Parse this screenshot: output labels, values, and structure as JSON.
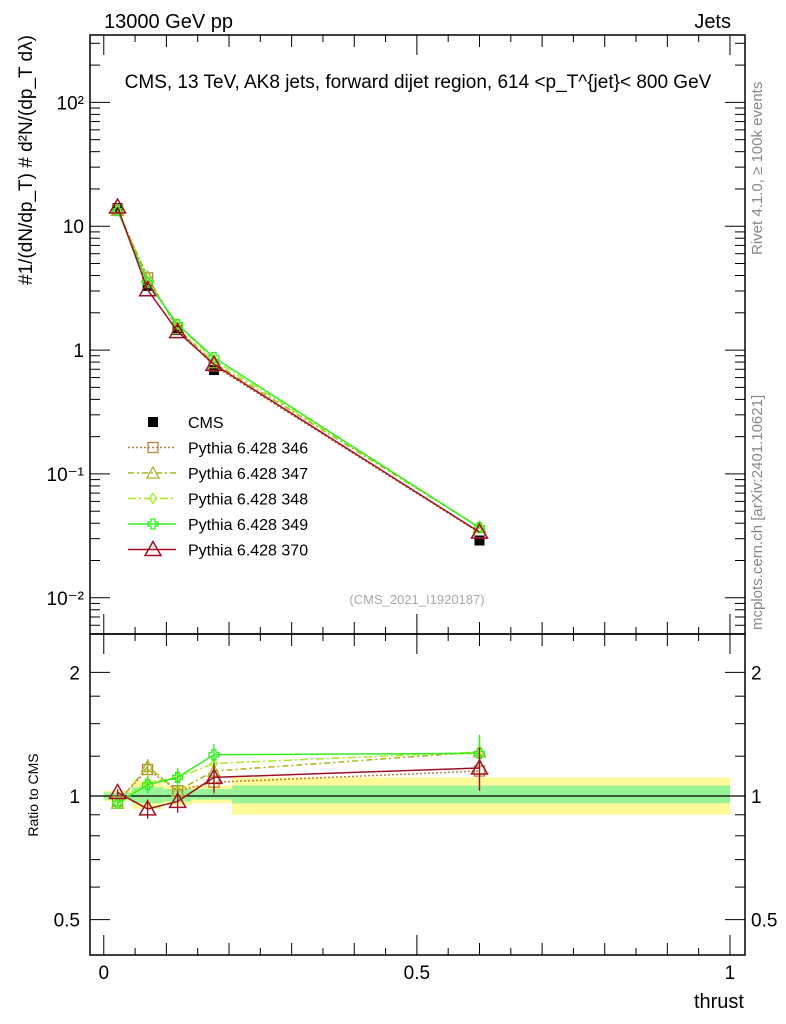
{
  "header": {
    "left": "13000 GeV pp",
    "right": "Jets"
  },
  "side_labels": {
    "rivet": "Rivet 4.1.0, ≥ 100k events",
    "mcplots": "mcplots.cern.ch [arXiv:2401.10621]"
  },
  "watermark": "(CMS_2021_I1920187)",
  "chart_data": [
    {
      "type": "line",
      "title": "CMS, 13 TeV, AK8 jets, forward dijet region, 614 <p_T^{jet}< 800 GeV",
      "ylabel": "#1/(dN/dp_T) # d²N/(dp_T dλ)",
      "xlabel": "",
      "yscale": "log",
      "ylim": [
        0.0051,
        350
      ],
      "xlim": [
        -0.022,
        1.024
      ],
      "yticks": [
        {
          "v": 0.01,
          "label": "10⁻²"
        },
        {
          "v": 0.1,
          "label": "10⁻¹"
        },
        {
          "v": 1,
          "label": "1"
        },
        {
          "v": 10,
          "label": "10"
        },
        {
          "v": 100,
          "label": "10²"
        }
      ],
      "legend_position": "lower-left",
      "x": [
        0.022,
        0.07,
        0.118,
        0.176,
        0.6
      ],
      "bin_edges": [
        0,
        0.045,
        0.095,
        0.14,
        0.205,
        1
      ],
      "series": [
        {
          "name": "CMS",
          "color": "#000000",
          "marker": "square",
          "values": [
            14,
            3.3,
            1.45,
            0.69,
            0.029
          ]
        },
        {
          "name": "Pythia 6.428 346",
          "color": "#b8843c",
          "marker": "open-square",
          "dash": "2,2",
          "values": [
            13.6,
            3.83,
            1.49,
            0.745,
            0.0334
          ]
        },
        {
          "name": "Pythia 6.428 347",
          "color": "#a8b41e",
          "marker": "open-triangle",
          "dash": "6,3,2,3",
          "values": [
            13.4,
            3.89,
            1.49,
            0.79,
            0.0371
          ]
        },
        {
          "name": "Pythia 6.428 348",
          "color": "#a4ee26",
          "marker": "open-diamond",
          "dash": "8,3,2,3",
          "values": [
            13.4,
            3.56,
            1.61,
            0.83,
            0.0371
          ]
        },
        {
          "name": "Pythia 6.428 349",
          "color": "#33ee22",
          "marker": "open-cross",
          "dash": "",
          "values": [
            13.4,
            3.51,
            1.61,
            0.87,
            0.0368
          ]
        },
        {
          "name": "Pythia 6.428 370",
          "color": "#a01024",
          "marker": "open-triangle-large",
          "dash": "",
          "values": [
            14.3,
            3.07,
            1.41,
            0.766,
            0.0339
          ]
        }
      ]
    },
    {
      "type": "line",
      "ylabel": "Ratio to CMS",
      "xlabel": "thrust",
      "yscale": "log",
      "ylim": [
        0.41,
        2.48
      ],
      "xlim": [
        -0.022,
        1.024
      ],
      "yticks": [
        {
          "v": 0.5,
          "label": "0.5"
        },
        {
          "v": 1,
          "label": "1"
        },
        {
          "v": 2,
          "label": "2"
        }
      ],
      "xticks": [
        {
          "v": 0,
          "label": "0"
        },
        {
          "v": 0.5,
          "label": "0.5"
        },
        {
          "v": 1,
          "label": "1"
        }
      ],
      "bands": {
        "yellow": [
          [
            0.97,
            1.03
          ],
          [
            0.93,
            1.09
          ],
          [
            0.95,
            1.06
          ],
          [
            0.96,
            1.06
          ],
          [
            0.9,
            1.11
          ]
        ],
        "green": [
          [
            0.98,
            1.02
          ],
          [
            0.96,
            1.05
          ],
          [
            0.97,
            1.04
          ],
          [
            0.98,
            1.04
          ],
          [
            0.96,
            1.06
          ]
        ]
      },
      "series": [
        {
          "name": "Pythia 6.428 346",
          "values": [
            0.97,
            1.16,
            1.03,
            1.08,
            1.15
          ],
          "err": [
            0.02,
            0.05,
            0.05,
            0.07,
            0.12
          ]
        },
        {
          "name": "Pythia 6.428 347",
          "values": [
            0.96,
            1.18,
            1.03,
            1.15,
            1.28
          ],
          "err": [
            0.02,
            0.05,
            0.05,
            0.07,
            0.12
          ]
        },
        {
          "name": "Pythia 6.428 348",
          "values": [
            0.96,
            1.08,
            1.11,
            1.2,
            1.28
          ],
          "err": [
            0.02,
            0.05,
            0.05,
            0.07,
            0.12
          ]
        },
        {
          "name": "Pythia 6.428 349",
          "values": [
            0.96,
            1.065,
            1.11,
            1.26,
            1.27
          ],
          "err": [
            0.02,
            0.05,
            0.06,
            0.08,
            0.14
          ]
        },
        {
          "name": "Pythia 6.428 370",
          "values": [
            1.02,
            0.93,
            0.97,
            1.11,
            1.17
          ],
          "err": [
            0.02,
            0.05,
            0.06,
            0.09,
            0.14
          ]
        }
      ]
    }
  ]
}
